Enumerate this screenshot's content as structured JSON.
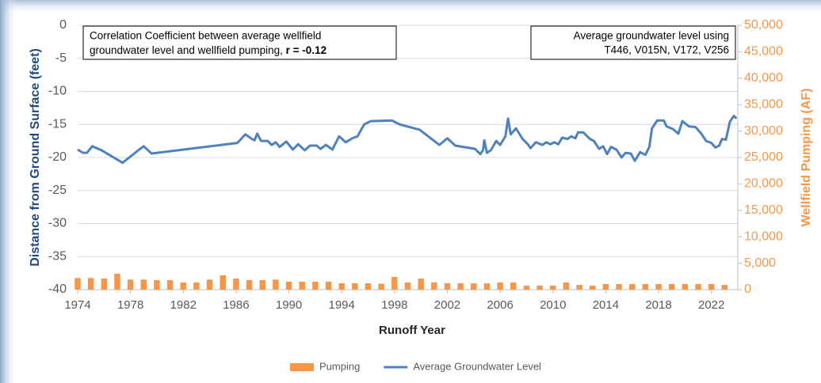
{
  "chart_data": {
    "type": "combo",
    "x_label": "Runoff Year",
    "y_label": "Distance from Ground Surface (feet)",
    "y2_label": "Wellfield Pumping (AF)",
    "xlim": [
      1974,
      2024
    ],
    "xticks": [
      1974,
      1978,
      1982,
      1986,
      1990,
      1994,
      1998,
      2002,
      2006,
      2010,
      2014,
      2018,
      2022
    ],
    "ylim": [
      -40,
      0
    ],
    "yticks": [
      0,
      -5,
      -10,
      -15,
      -20,
      -25,
      -30,
      -35,
      -40
    ],
    "y2lim": [
      0,
      50000
    ],
    "y2ticks": [
      {
        "value": 50000,
        "label": "50,000"
      },
      {
        "value": 45000,
        "label": "45,000"
      },
      {
        "value": 40000,
        "label": "40,000"
      },
      {
        "value": 35000,
        "label": "35,000"
      },
      {
        "value": 30000,
        "label": "30,000"
      },
      {
        "value": 25000,
        "label": "25,000"
      },
      {
        "value": 20000,
        "label": "20,000"
      },
      {
        "value": 15000,
        "label": "15,000"
      },
      {
        "value": 10000,
        "label": "10,000"
      },
      {
        "value": 5000,
        "label": "5,000"
      },
      0
    ],
    "grid": true,
    "legend": "bottom",
    "annotations": [
      {
        "lines": [
          "Correlation Coefficient between average wellfield",
          "groundwater level and wellfield pumping,"
        ],
        "emphasis": "r = -0.12"
      },
      {
        "lines": [
          "Average groundwater level using",
          "T446, V015N, V172, V256"
        ]
      }
    ],
    "series": [
      {
        "name": "Pumping",
        "type": "bar",
        "axis": "y2",
        "color": "#f79646",
        "x": [
          1974,
          1975,
          1976,
          1977,
          1978,
          1979,
          1980,
          1981,
          1982,
          1983,
          1984,
          1985,
          1986,
          1987,
          1988,
          1989,
          1990,
          1991,
          1992,
          1993,
          1994,
          1995,
          1996,
          1997,
          1998,
          1999,
          2000,
          2001,
          2002,
          2003,
          2004,
          2005,
          2006,
          2007,
          2008,
          2009,
          2010,
          2011,
          2012,
          2013,
          2014,
          2015,
          2016,
          2017,
          2018,
          2019,
          2020,
          2021,
          2022,
          2023
        ],
        "values": [
          2200,
          2200,
          2100,
          3000,
          1900,
          1900,
          1800,
          1800,
          1350,
          1350,
          1900,
          2700,
          2100,
          1800,
          1800,
          1900,
          1500,
          1500,
          1500,
          1500,
          1200,
          1200,
          1200,
          1100,
          2400,
          1350,
          2100,
          1350,
          1200,
          1200,
          1200,
          1200,
          1350,
          1350,
          750,
          750,
          750,
          1350,
          900,
          750,
          1050,
          1050,
          1050,
          1050,
          1050,
          1050,
          1050,
          1050,
          1050,
          900
        ]
      },
      {
        "name": "Average Groundwater Level",
        "type": "line",
        "color": "#4f81bd",
        "x": [
          1974.0,
          1974.4,
          1974.7,
          1975.1,
          1975.8,
          1977.4,
          1978.6,
          1979.0,
          1979.6,
          1986.1,
          1986.7,
          1987.2,
          1987.4,
          1987.6,
          1987.9,
          1988.4,
          1988.7,
          1989.0,
          1989.3,
          1989.8,
          1990.3,
          1990.7,
          1991.2,
          1991.6,
          1992.1,
          1992.4,
          1992.8,
          1993.3,
          1993.8,
          1994.3,
          1994.8,
          1995.2,
          1995.7,
          1996.2,
          1997.8,
          1998.4,
          1999.9,
          2001.4,
          2002.0,
          2002.6,
          2004.1,
          2004.5,
          2004.7,
          2004.8,
          2005.0,
          2005.3,
          2005.7,
          2006.0,
          2006.4,
          2006.6,
          2006.8,
          2007.2,
          2007.7,
          2008.1,
          2008.3,
          2008.7,
          2009.2,
          2009.5,
          2009.8,
          2010.1,
          2010.4,
          2010.7,
          2011.1,
          2011.4,
          2011.7,
          2011.9,
          2012.3,
          2012.8,
          2013.1,
          2013.5,
          2013.8,
          2014.1,
          2014.4,
          2014.8,
          2015.2,
          2015.5,
          2015.9,
          2016.2,
          2016.6,
          2017.0,
          2017.3,
          2017.5,
          2017.9,
          2018.4,
          2018.6,
          2019.1,
          2019.5,
          2019.8,
          2020.3,
          2020.8,
          2021.2,
          2021.6,
          2022.0,
          2022.3,
          2022.6,
          2022.8,
          2023.1,
          2023.4,
          2023.7,
          2023.9
        ],
        "values": [
          -18.8,
          -19.3,
          -19.3,
          -18.3,
          -18.9,
          -20.8,
          -18.9,
          -18.3,
          -19.4,
          -17.8,
          -16.5,
          -17.2,
          -17.4,
          -16.4,
          -17.5,
          -17.5,
          -18.1,
          -17.7,
          -18.4,
          -17.6,
          -18.8,
          -18.0,
          -18.9,
          -18.2,
          -18.2,
          -18.7,
          -18.1,
          -18.8,
          -16.8,
          -17.7,
          -17.1,
          -16.8,
          -15.0,
          -14.5,
          -14.4,
          -15.0,
          -15.8,
          -18.1,
          -17.1,
          -18.2,
          -18.7,
          -19.5,
          -18.9,
          -17.4,
          -19.3,
          -18.9,
          -17.5,
          -18.1,
          -16.8,
          -14.1,
          -16.5,
          -15.6,
          -17.2,
          -18.0,
          -18.6,
          -17.7,
          -18.1,
          -17.7,
          -18.0,
          -17.7,
          -18.0,
          -17.0,
          -17.2,
          -16.8,
          -17.1,
          -16.2,
          -16.2,
          -17.2,
          -17.5,
          -18.7,
          -18.3,
          -19.5,
          -18.4,
          -18.8,
          -20.0,
          -19.3,
          -19.4,
          -20.5,
          -19.2,
          -19.6,
          -18.4,
          -15.6,
          -14.4,
          -14.4,
          -15.3,
          -15.7,
          -16.4,
          -14.5,
          -15.3,
          -15.4,
          -16.3,
          -17.5,
          -17.8,
          -18.5,
          -18.2,
          -17.2,
          -17.3,
          -14.6,
          -13.7,
          -14.1
        ]
      }
    ]
  }
}
